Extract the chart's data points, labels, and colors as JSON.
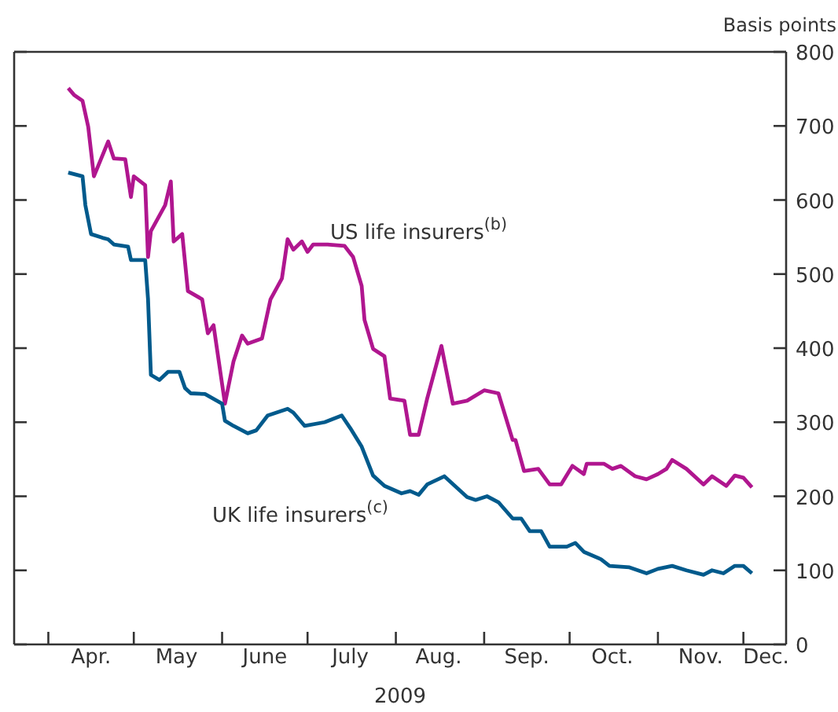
{
  "chart_data": {
    "type": "line",
    "ylabel": "Basis points",
    "xlabel": "2009",
    "xlim": [
      "2009-03-20",
      "2009-12-16"
    ],
    "xticks": [
      {
        "value": "2009-04-01",
        "label": null
      },
      {
        "value": "2009-04-16",
        "label": "Apr."
      },
      {
        "value": "2009-05-01",
        "label": null
      },
      {
        "value": "2009-05-16",
        "label": "May"
      },
      {
        "value": "2009-06-01",
        "label": null
      },
      {
        "value": "2009-06-16",
        "label": "June"
      },
      {
        "value": "2009-07-01",
        "label": null
      },
      {
        "value": "2009-07-16",
        "label": "July"
      },
      {
        "value": "2009-08-01",
        "label": null
      },
      {
        "value": "2009-08-16",
        "label": "Aug."
      },
      {
        "value": "2009-09-01",
        "label": null
      },
      {
        "value": "2009-09-16",
        "label": "Sep."
      },
      {
        "value": "2009-10-01",
        "label": null
      },
      {
        "value": "2009-10-16",
        "label": "Oct."
      },
      {
        "value": "2009-11-01",
        "label": null
      },
      {
        "value": "2009-11-16",
        "label": "Nov."
      },
      {
        "value": "2009-12-01",
        "label": null
      },
      {
        "value": "2009-12-09",
        "label": "Dec."
      }
    ],
    "ylim": [
      0,
      800
    ],
    "yticks": [
      0,
      100,
      200,
      300,
      400,
      500,
      600,
      700,
      800
    ],
    "marker": "none",
    "line_style": "solid",
    "series": [
      {
        "name": "US life insurers$^{(b)}$",
        "color": "#b0168f",
        "x": [
          "2009-04-08",
          "2009-04-10",
          "2009-04-13",
          "2009-04-15",
          "2009-04-17",
          "2009-04-22",
          "2009-04-24",
          "2009-04-28",
          "2009-04-30",
          "2009-05-01",
          "2009-05-05",
          "2009-05-06",
          "2009-05-07",
          "2009-05-12",
          "2009-05-14",
          "2009-05-15",
          "2009-05-18",
          "2009-05-20",
          "2009-05-25",
          "2009-05-27",
          "2009-05-29",
          "2009-06-02",
          "2009-06-05",
          "2009-06-08",
          "2009-06-10",
          "2009-06-15",
          "2009-06-18",
          "2009-06-22",
          "2009-06-24",
          "2009-06-26",
          "2009-06-29",
          "2009-07-01",
          "2009-07-03",
          "2009-07-08",
          "2009-07-14",
          "2009-07-17",
          "2009-07-20",
          "2009-07-21",
          "2009-07-24",
          "2009-07-28",
          "2009-07-30",
          "2009-08-04",
          "2009-08-06",
          "2009-08-09",
          "2009-08-12",
          "2009-08-17",
          "2009-08-21",
          "2009-08-26",
          "2009-09-01",
          "2009-09-06",
          "2009-09-11",
          "2009-09-12",
          "2009-09-15",
          "2009-09-20",
          "2009-09-24",
          "2009-09-28",
          "2009-10-02",
          "2009-10-06",
          "2009-10-07",
          "2009-10-13",
          "2009-10-16",
          "2009-10-19",
          "2009-10-24",
          "2009-10-28",
          "2009-11-01",
          "2009-11-04",
          "2009-11-06",
          "2009-11-11",
          "2009-11-17",
          "2009-11-20",
          "2009-11-25",
          "2009-11-28",
          "2009-12-01",
          "2009-12-04"
        ],
        "values": [
          751,
          742,
          734,
          699,
          632,
          679,
          656,
          655,
          604,
          632,
          620,
          523,
          558,
          593,
          625,
          544,
          554,
          477,
          466,
          420,
          431,
          325,
          382,
          417,
          406,
          413,
          466,
          494,
          547,
          533,
          544,
          530,
          540,
          540,
          538,
          523,
          484,
          438,
          399,
          389,
          332,
          329,
          283,
          283,
          332,
          403,
          325,
          329,
          343,
          339,
          276,
          276,
          234,
          237,
          216,
          216,
          241,
          230,
          244,
          244,
          237,
          241,
          227,
          223,
          230,
          237,
          249,
          237,
          216,
          227,
          214,
          228,
          225,
          212
        ]
      },
      {
        "name": "UK life insurers$^{(c)}$",
        "color": "#005a8c",
        "x": [
          "2009-04-08",
          "2009-04-13",
          "2009-04-14",
          "2009-04-16",
          "2009-04-20",
          "2009-04-22",
          "2009-04-24",
          "2009-04-29",
          "2009-04-30",
          "2009-05-05",
          "2009-05-06",
          "2009-05-07",
          "2009-05-10",
          "2009-05-13",
          "2009-05-17",
          "2009-05-19",
          "2009-05-21",
          "2009-05-26",
          "2009-06-01",
          "2009-06-02",
          "2009-06-05",
          "2009-06-10",
          "2009-06-13",
          "2009-06-17",
          "2009-06-24",
          "2009-06-26",
          "2009-06-30",
          "2009-07-07",
          "2009-07-13",
          "2009-07-16",
          "2009-07-20",
          "2009-07-24",
          "2009-07-28",
          "2009-08-03",
          "2009-08-06",
          "2009-08-09",
          "2009-08-12",
          "2009-08-18",
          "2009-08-26",
          "2009-08-29",
          "2009-09-02",
          "2009-09-06",
          "2009-09-11",
          "2009-09-14",
          "2009-09-17",
          "2009-09-21",
          "2009-09-24",
          "2009-09-30",
          "2009-10-03",
          "2009-10-06",
          "2009-10-12",
          "2009-10-15",
          "2009-10-22",
          "2009-10-28",
          "2009-11-01",
          "2009-11-06",
          "2009-11-11",
          "2009-11-17",
          "2009-11-20",
          "2009-11-24",
          "2009-11-28",
          "2009-12-01",
          "2009-12-04"
        ],
        "values": [
          637,
          632,
          593,
          554,
          549,
          547,
          540,
          537,
          519,
          519,
          466,
          364,
          357,
          368,
          368,
          346,
          339,
          338,
          325,
          302,
          295,
          285,
          289,
          309,
          318,
          313,
          295,
          300,
          309,
          292,
          267,
          228,
          214,
          204,
          207,
          202,
          216,
          227,
          199,
          195,
          200,
          192,
          170,
          170,
          153,
          153,
          132,
          132,
          137,
          125,
          115,
          106,
          104,
          96,
          102,
          106,
          100,
          94,
          100,
          96,
          106,
          106,
          96
        ]
      }
    ]
  }
}
